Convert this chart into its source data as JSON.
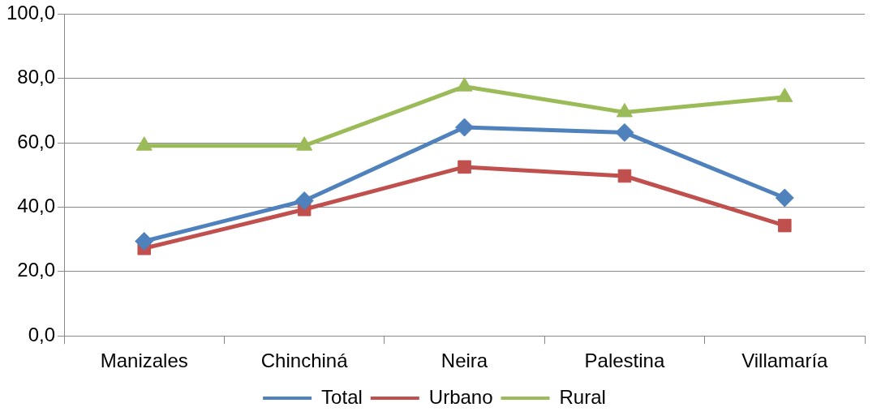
{
  "chart_data": {
    "type": "line",
    "categories": [
      "Manizales",
      "Chinchiná",
      "Neira",
      "Palestina",
      "Villamaría"
    ],
    "series": [
      {
        "name": "Total",
        "color": "#4f81bd",
        "marker": "diamond",
        "values": [
          29.4,
          42.0,
          64.8,
          63.2,
          42.9
        ]
      },
      {
        "name": "Urbano",
        "color": "#c0504d",
        "marker": "square",
        "values": [
          27.2,
          39.3,
          52.5,
          49.7,
          34.3
        ]
      },
      {
        "name": "Rural",
        "color": "#9bbb59",
        "marker": "triangle",
        "values": [
          59.1,
          59.1,
          77.5,
          69.5,
          74.2
        ]
      }
    ],
    "ylim": [
      0,
      100
    ],
    "yticks": [
      {
        "value": 0,
        "label": "0,0"
      },
      {
        "value": 20,
        "label": "20,0"
      },
      {
        "value": 40,
        "label": "40,0"
      },
      {
        "value": 60,
        "label": "60,0"
      },
      {
        "value": 80,
        "label": "80,0"
      },
      {
        "value": 100,
        "label": "100,0"
      }
    ],
    "grid": "y",
    "legend": "bottom",
    "line_style": "solid"
  }
}
